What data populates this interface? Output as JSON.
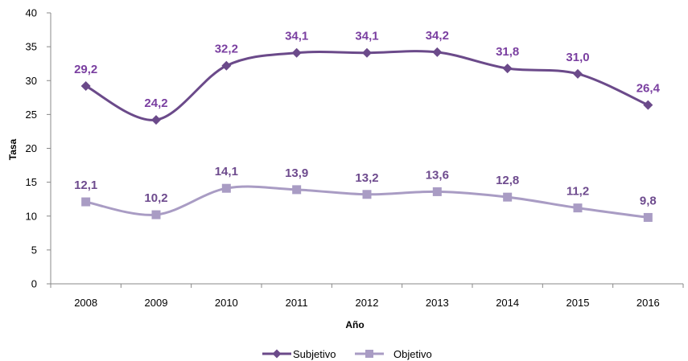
{
  "chart_data": {
    "type": "line",
    "title": "",
    "xlabel": "Año",
    "ylabel": "Tasa",
    "ylim": [
      0,
      40
    ],
    "yticks": [
      0,
      5,
      10,
      15,
      20,
      25,
      30,
      35,
      40
    ],
    "grid": false,
    "legend_position": "bottom",
    "categories": [
      "2008",
      "2009",
      "2010",
      "2011",
      "2012",
      "2013",
      "2014",
      "2015",
      "2016"
    ],
    "series": [
      {
        "name": "Subjetivo",
        "values": [
          29.2,
          24.2,
          32.2,
          34.1,
          34.1,
          34.2,
          31.8,
          31.0,
          26.4
        ],
        "labels": [
          "29,2",
          "24,2",
          "32,2",
          "34,1",
          "34,1",
          "34,2",
          "31,8",
          "31,0",
          "26,4"
        ],
        "color": "#6b4a8a",
        "label_color": "#7a3fa0",
        "marker": "diamond"
      },
      {
        "name": "Objetivo",
        "values": [
          12.1,
          10.2,
          14.1,
          13.9,
          13.2,
          13.6,
          12.8,
          11.2,
          9.8
        ],
        "labels": [
          "12,1",
          "10,2",
          "14,1",
          "13,9",
          "13,2",
          "13,6",
          "12,8",
          "11,2",
          "9,8"
        ],
        "color": "#a99cc4",
        "label_color": "#6e4b8e",
        "marker": "square"
      }
    ]
  }
}
